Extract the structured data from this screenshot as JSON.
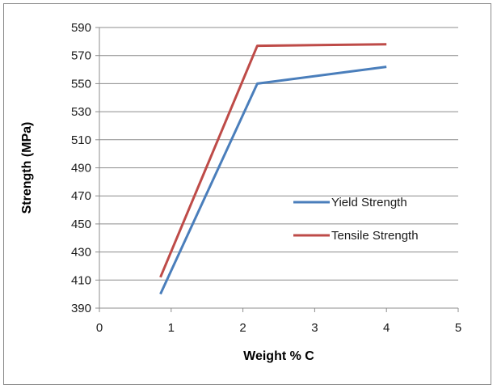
{
  "chart_data": {
    "type": "line",
    "title": "",
    "xlabel": "Weight % C",
    "ylabel": "Strength (MPa)",
    "xlim": [
      0,
      5
    ],
    "ylim": [
      390,
      590
    ],
    "xticks": [
      0,
      1,
      2,
      3,
      4,
      5
    ],
    "yticks": [
      390,
      410,
      430,
      450,
      470,
      490,
      510,
      530,
      550,
      570,
      590
    ],
    "grid": "horizontal",
    "legend_position": "right",
    "series": [
      {
        "name": "Yield Strength",
        "color": "#4a7ebb",
        "x": [
          0.85,
          2.2,
          4.0
        ],
        "y": [
          400,
          550,
          562
        ]
      },
      {
        "name": "Tensile Strength",
        "color": "#be4b48",
        "x": [
          0.85,
          2.2,
          4.0
        ],
        "y": [
          412,
          577,
          578
        ]
      }
    ]
  }
}
